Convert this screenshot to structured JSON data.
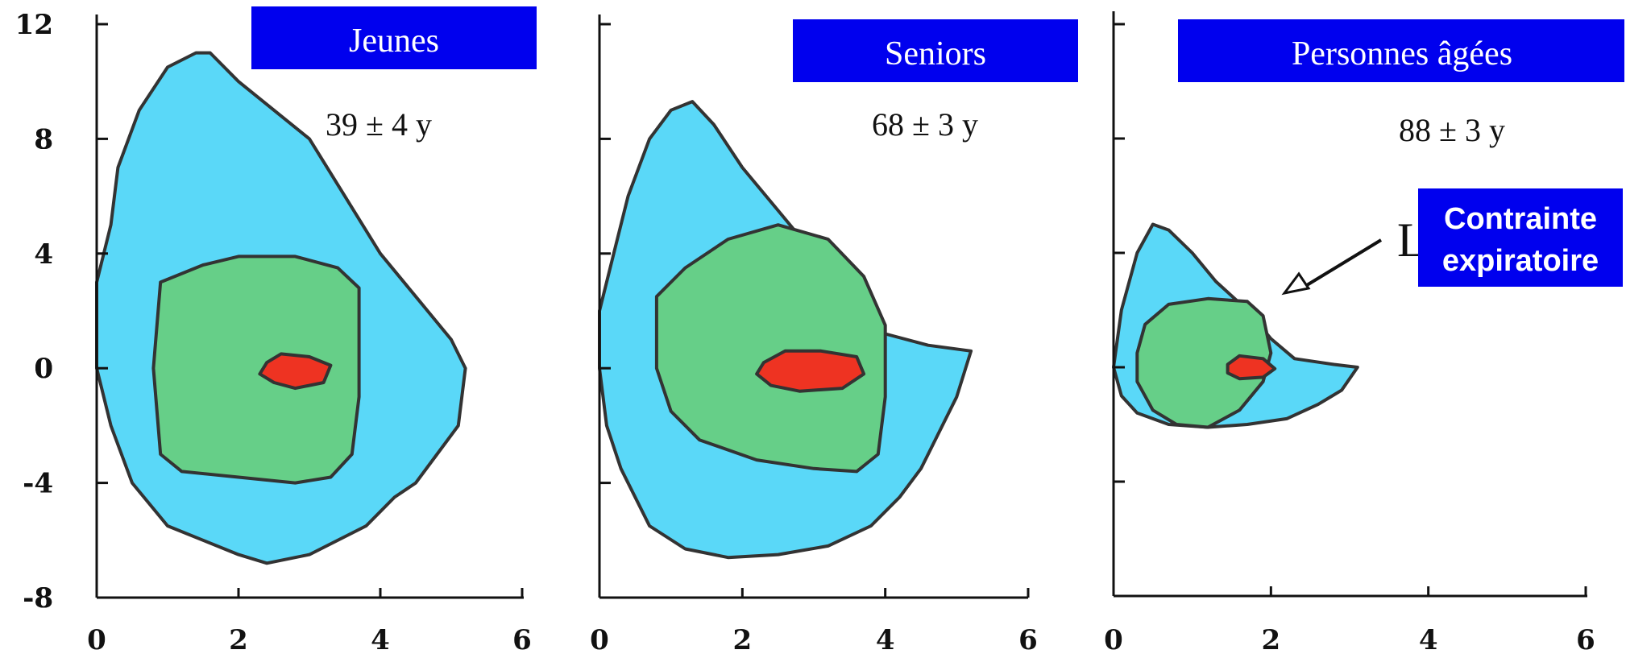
{
  "chart_data": [
    {
      "type": "area",
      "title": "Jeunes",
      "annotation": "39 ± 4 y",
      "xlim": [
        0,
        6
      ],
      "ylim": [
        -8,
        12
      ],
      "x_ticks": [
        "0",
        "2",
        "4",
        "6"
      ],
      "y_ticks": [
        "-8",
        "-4",
        "0",
        "4",
        "8",
        "12"
      ],
      "regions": [
        {
          "color": "#5ad8f8",
          "points": [
            [
              0,
              0
            ],
            [
              0,
              3
            ],
            [
              0.2,
              5
            ],
            [
              0.3,
              7
            ],
            [
              0.6,
              9
            ],
            [
              1.0,
              10.5
            ],
            [
              1.4,
              11
            ],
            [
              1.6,
              11
            ],
            [
              2.0,
              10
            ],
            [
              2.5,
              9
            ],
            [
              3.0,
              8
            ],
            [
              3.5,
              6
            ],
            [
              4.0,
              4
            ],
            [
              4.5,
              2.5
            ],
            [
              5.0,
              1
            ],
            [
              5.2,
              0
            ],
            [
              5.1,
              -2
            ],
            [
              4.8,
              -3
            ],
            [
              4.5,
              -4
            ],
            [
              4.2,
              -4.5
            ],
            [
              3.8,
              -5.5
            ],
            [
              3.0,
              -6.5
            ],
            [
              2.4,
              -6.8
            ],
            [
              2.0,
              -6.5
            ],
            [
              1.5,
              -6
            ],
            [
              1.0,
              -5.5
            ],
            [
              0.5,
              -4
            ],
            [
              0.2,
              -2
            ]
          ]
        },
        {
          "color": "#66cf88",
          "points": [
            [
              0.9,
              3
            ],
            [
              1.5,
              3.6
            ],
            [
              2.0,
              3.9
            ],
            [
              2.8,
              3.9
            ],
            [
              3.4,
              3.5
            ],
            [
              3.7,
              2.8
            ],
            [
              3.7,
              -1
            ],
            [
              3.6,
              -3
            ],
            [
              3.3,
              -3.8
            ],
            [
              2.8,
              -4
            ],
            [
              2.0,
              -3.8
            ],
            [
              1.2,
              -3.6
            ],
            [
              0.9,
              -3.0
            ],
            [
              0.8,
              0
            ]
          ]
        },
        {
          "color": "#ee3322",
          "points": [
            [
              2.4,
              0.2
            ],
            [
              2.6,
              0.5
            ],
            [
              3.0,
              0.4
            ],
            [
              3.3,
              0.1
            ],
            [
              3.2,
              -0.5
            ],
            [
              2.8,
              -0.7
            ],
            [
              2.5,
              -0.5
            ],
            [
              2.3,
              -0.2
            ]
          ]
        }
      ]
    },
    {
      "type": "area",
      "title": "Seniors",
      "annotation": "68 ± 3 y",
      "xlim": [
        0,
        6
      ],
      "ylim": [
        -8,
        12
      ],
      "x_ticks": [
        "0",
        "2",
        "4",
        "6"
      ],
      "y_ticks": [
        "-8",
        "-4",
        "0",
        "4",
        "8",
        "12"
      ],
      "regions": [
        {
          "color": "#5ad8f8",
          "points": [
            [
              0,
              0
            ],
            [
              0,
              2
            ],
            [
              0.2,
              4
            ],
            [
              0.4,
              6
            ],
            [
              0.7,
              8
            ],
            [
              1.0,
              9
            ],
            [
              1.3,
              9.3
            ],
            [
              1.6,
              8.5
            ],
            [
              2.0,
              7
            ],
            [
              2.5,
              5.5
            ],
            [
              3.0,
              4
            ],
            [
              3.5,
              2
            ],
            [
              4.0,
              1.2
            ],
            [
              4.6,
              0.8
            ],
            [
              5.2,
              0.6
            ],
            [
              5.0,
              -1
            ],
            [
              4.8,
              -2
            ],
            [
              4.5,
              -3.5
            ],
            [
              4.2,
              -4.5
            ],
            [
              3.8,
              -5.5
            ],
            [
              3.2,
              -6.2
            ],
            [
              2.5,
              -6.5
            ],
            [
              1.8,
              -6.6
            ],
            [
              1.2,
              -6.3
            ],
            [
              0.7,
              -5.5
            ],
            [
              0.3,
              -3.5
            ],
            [
              0.1,
              -2
            ]
          ]
        },
        {
          "color": "#66cf88",
          "points": [
            [
              0.8,
              2.5
            ],
            [
              1.2,
              3.5
            ],
            [
              1.8,
              4.5
            ],
            [
              2.5,
              5
            ],
            [
              3.2,
              4.5
            ],
            [
              3.7,
              3.2
            ],
            [
              4.0,
              1.5
            ],
            [
              4.0,
              -1
            ],
            [
              3.9,
              -3
            ],
            [
              3.6,
              -3.6
            ],
            [
              3.0,
              -3.5
            ],
            [
              2.2,
              -3.2
            ],
            [
              1.4,
              -2.5
            ],
            [
              1.0,
              -1.5
            ],
            [
              0.8,
              0
            ]
          ]
        },
        {
          "color": "#ee3322",
          "points": [
            [
              2.3,
              0.2
            ],
            [
              2.6,
              0.6
            ],
            [
              3.1,
              0.6
            ],
            [
              3.6,
              0.4
            ],
            [
              3.7,
              -0.2
            ],
            [
              3.4,
              -0.7
            ],
            [
              2.8,
              -0.8
            ],
            [
              2.4,
              -0.6
            ],
            [
              2.2,
              -0.2
            ]
          ]
        }
      ]
    },
    {
      "type": "area",
      "title": "Personnes âgées",
      "annotation": "88 ± 3 y",
      "xlim": [
        0,
        6
      ],
      "ylim": [
        -8,
        12
      ],
      "x_ticks": [
        "0",
        "2",
        "4",
        "6"
      ],
      "y_ticks": [],
      "callout": {
        "text_line1": "Contrainte",
        "text_line2": "expiratoire",
        "partial_letter": "L"
      },
      "regions": [
        {
          "color": "#5ad8f8",
          "points": [
            [
              0,
              0
            ],
            [
              0.1,
              2
            ],
            [
              0.3,
              4
            ],
            [
              0.5,
              5
            ],
            [
              0.7,
              4.8
            ],
            [
              1.0,
              4
            ],
            [
              1.3,
              3
            ],
            [
              1.7,
              2
            ],
            [
              2.0,
              1
            ],
            [
              2.3,
              0.3
            ],
            [
              2.8,
              0.1
            ],
            [
              3.1,
              0
            ],
            [
              2.9,
              -0.8
            ],
            [
              2.6,
              -1.3
            ],
            [
              2.2,
              -1.8
            ],
            [
              1.7,
              -2
            ],
            [
              1.2,
              -2.1
            ],
            [
              0.7,
              -2
            ],
            [
              0.3,
              -1.6
            ],
            [
              0.1,
              -1
            ]
          ]
        },
        {
          "color": "#66cf88",
          "points": [
            [
              0.4,
              1.5
            ],
            [
              0.7,
              2.2
            ],
            [
              1.2,
              2.4
            ],
            [
              1.7,
              2.3
            ],
            [
              1.9,
              1.8
            ],
            [
              2.0,
              0.5
            ],
            [
              1.9,
              -0.5
            ],
            [
              1.6,
              -1.5
            ],
            [
              1.2,
              -2.1
            ],
            [
              0.8,
              -2
            ],
            [
              0.5,
              -1.5
            ],
            [
              0.3,
              -0.5
            ],
            [
              0.3,
              0.5
            ]
          ]
        },
        {
          "color": "#ee3322",
          "points": [
            [
              1.45,
              0.1
            ],
            [
              1.6,
              0.4
            ],
            [
              1.9,
              0.3
            ],
            [
              2.05,
              -0.05
            ],
            [
              1.9,
              -0.35
            ],
            [
              1.6,
              -0.4
            ],
            [
              1.45,
              -0.2
            ]
          ]
        }
      ]
    }
  ]
}
